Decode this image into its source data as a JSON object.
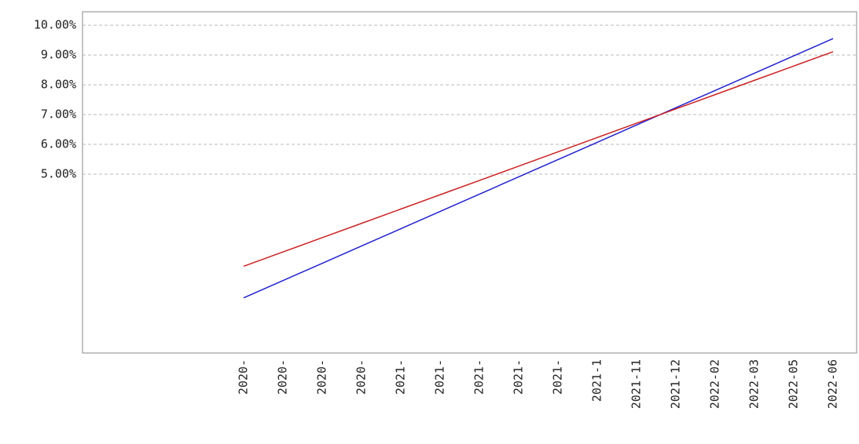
{
  "chart_data": {
    "type": "line",
    "categories": [
      "2020-",
      "2020-",
      "2020-",
      "2020-",
      "2021-",
      "2021-",
      "2021-",
      "2021-",
      "2021-",
      "2021-1",
      "2021-11",
      "2021-12",
      "2022-02",
      "2022-03",
      "2022-05",
      "2022-06"
    ],
    "series": [
      {
        "color": "#2222cc",
        "values": [
          0.85,
          1.43,
          2.01,
          2.59,
          3.17,
          3.75,
          4.33,
          4.91,
          5.49,
          6.07,
          6.65,
          7.23,
          7.81,
          8.39,
          8.97,
          9.55
        ]
      },
      {
        "color": "#cc2222",
        "values": [
          1.91,
          2.39,
          2.87,
          3.35,
          3.83,
          4.31,
          4.79,
          5.27,
          5.75,
          6.23,
          6.71,
          7.19,
          7.67,
          8.15,
          8.63,
          9.11
        ]
      }
    ],
    "ylim": [
      -1,
      10.45
    ],
    "yticks": [
      {
        "value": 5,
        "label": "5.00%"
      },
      {
        "value": 6,
        "label": "6.00%"
      },
      {
        "value": 7,
        "label": "7.00%"
      },
      {
        "value": 8,
        "label": "8.00%"
      },
      {
        "value": 9,
        "label": "9.00%"
      },
      {
        "value": 10,
        "label": "10.00%"
      }
    ],
    "grid": true
  }
}
